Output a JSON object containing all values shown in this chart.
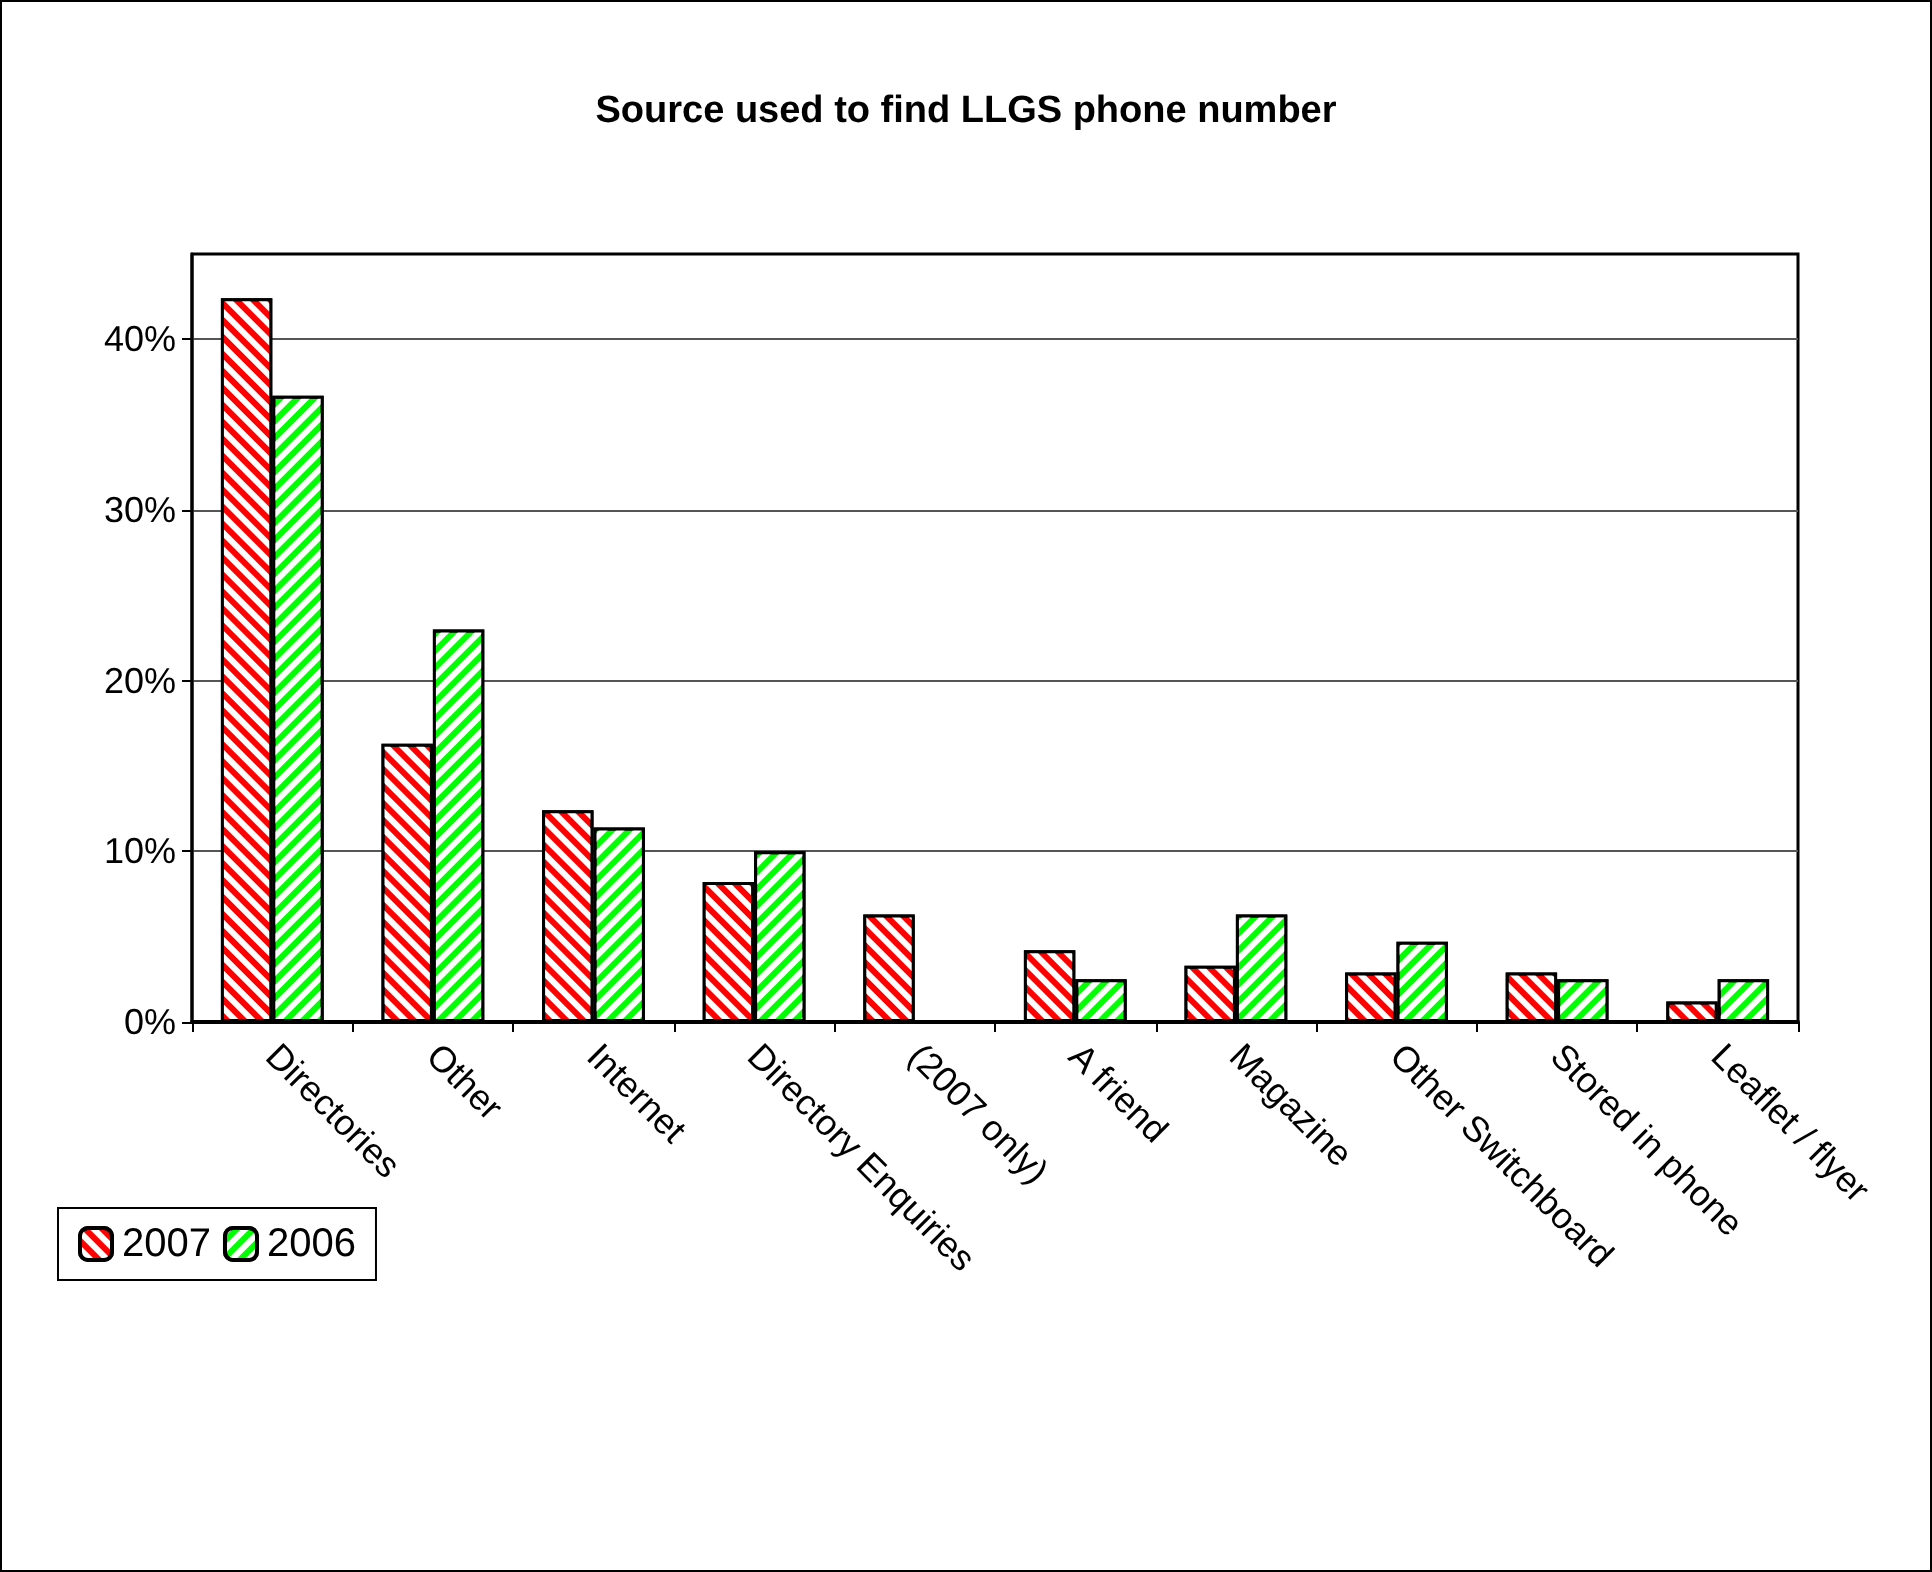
{
  "chart_data": {
    "type": "bar",
    "title": "Source used to find LLGS phone number",
    "categories": [
      "Directories",
      "Other",
      "Internet",
      "Directory Enquiries",
      "(2007 only)",
      "A friend",
      "Magazine",
      "Other Switchboard",
      "Stored in phone",
      "Leaflet / flyer"
    ],
    "series": [
      {
        "name": "2007",
        "color": "#ff0000",
        "values": [
          42.4,
          16.3,
          12.4,
          8.2,
          6.3,
          4.2,
          3.3,
          2.9,
          2.9,
          1.2
        ]
      },
      {
        "name": "2006",
        "color": "#00ff00",
        "values": [
          36.7,
          23.0,
          11.4,
          10.0,
          null,
          2.5,
          6.3,
          4.7,
          2.5,
          2.5
        ]
      }
    ],
    "ylim": [
      0,
      45
    ],
    "yticks": [
      {
        "value": 0,
        "label": "0%"
      },
      {
        "value": 10,
        "label": "10%"
      },
      {
        "value": 20,
        "label": "20%"
      },
      {
        "value": 30,
        "label": "30%"
      },
      {
        "value": 40,
        "label": "40%"
      }
    ],
    "grid": "y",
    "legend": "bottom left"
  }
}
